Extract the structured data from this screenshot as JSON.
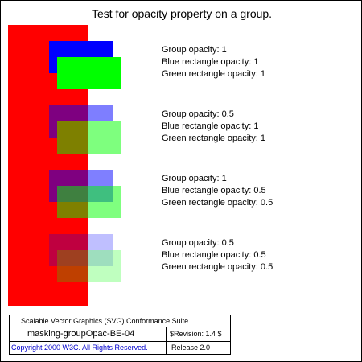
{
  "title": "Test for opacity property on a group.",
  "colors": {
    "background_bar": "#ff0000",
    "blue_rect": "#0000ff",
    "green_rect": "#00ff00",
    "copyright_text": "#0000cc"
  },
  "cases": [
    {
      "group_opacity": 1,
      "blue_opacity": 1,
      "green_opacity": 1,
      "lines": [
        "Group opacity: 1",
        "Blue rectangle opacity: 1",
        "Green rectangle opacity: 1"
      ]
    },
    {
      "group_opacity": 0.5,
      "blue_opacity": 1,
      "green_opacity": 1,
      "lines": [
        "Group opacity: 0.5",
        "Blue rectangle opacity: 1",
        "Green rectangle opacity: 1"
      ]
    },
    {
      "group_opacity": 1,
      "blue_opacity": 0.5,
      "green_opacity": 0.5,
      "lines": [
        "Group opacity: 1",
        "Blue rectangle opacity: 0.5",
        "Green rectangle opacity: 0.5"
      ]
    },
    {
      "group_opacity": 0.5,
      "blue_opacity": 0.5,
      "green_opacity": 0.5,
      "lines": [
        "Group opacity: 0.5",
        "Blue rectangle opacity: 0.5",
        "Green rectangle opacity: 0.5"
      ]
    }
  ],
  "footer": {
    "suite": "Scalable Vector Graphics (SVG) Conformance Suite",
    "test_name": "masking-groupOpac-BE-04",
    "revision": "$Revision: 1.4 $",
    "copyright": "Copyright 2000 W3C. All Rights Reserved.",
    "release": "Release 2.0"
  }
}
